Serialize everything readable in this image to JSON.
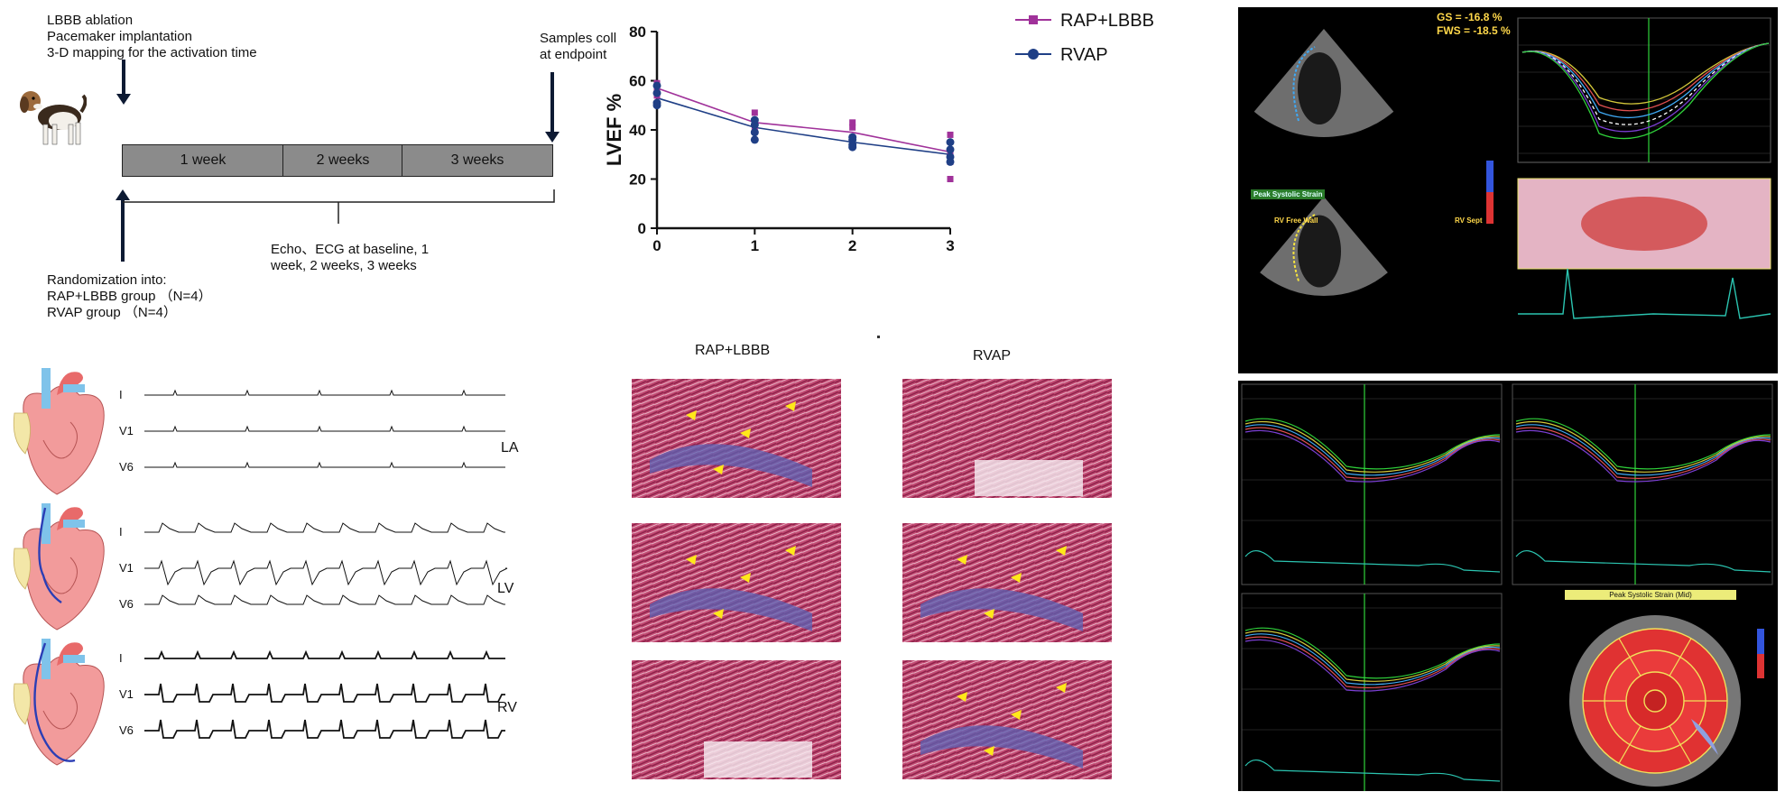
{
  "timeline": {
    "top_left_text": "LBBB ablation\nPacemaker implantation\n3-D mapping for the activation time",
    "top_right_text": "Samples coll\nat endpoint",
    "segments": [
      "1 week",
      "2 weeks",
      "3 weeks"
    ],
    "echo_text": "Echo、ECG at baseline, 1\nweek, 2 weeks, 3 weeks",
    "randomization_text": "Randomization into:\nRAP+LBBB group （N=4）\nRVAP group （N=4）"
  },
  "chart_data": {
    "type": "line",
    "title": "",
    "xlabel": "",
    "ylabel": "LVEF %",
    "x": [
      0,
      1,
      2,
      3
    ],
    "xlim": [
      0,
      3
    ],
    "ylim": [
      0,
      80
    ],
    "yticks": [
      0,
      20,
      40,
      60,
      80
    ],
    "legend_position": "top-right",
    "series": [
      {
        "name": "RAP+LBBB",
        "color": "#a0329a",
        "marker": "square",
        "values": [
          57,
          43,
          39,
          31
        ],
        "points": [
          [
            0,
            59
          ],
          [
            0,
            56
          ],
          [
            0,
            54
          ],
          [
            1,
            47
          ],
          [
            1,
            43
          ],
          [
            1,
            40
          ],
          [
            2,
            43
          ],
          [
            2,
            41
          ],
          [
            2,
            37
          ],
          [
            3,
            38
          ],
          [
            3,
            30
          ],
          [
            3,
            27
          ],
          [
            3,
            20
          ]
        ]
      },
      {
        "name": "RVAP",
        "color": "#1f3f86",
        "marker": "circle",
        "values": [
          53,
          41,
          35,
          30
        ],
        "points": [
          [
            0,
            58
          ],
          [
            0,
            55
          ],
          [
            0,
            51
          ],
          [
            0,
            50
          ],
          [
            1,
            44
          ],
          [
            1,
            42
          ],
          [
            1,
            39
          ],
          [
            1,
            36
          ],
          [
            2,
            37
          ],
          [
            2,
            36
          ],
          [
            2,
            34
          ],
          [
            2,
            33
          ],
          [
            3,
            35
          ],
          [
            3,
            32
          ],
          [
            3,
            29
          ],
          [
            3,
            27
          ]
        ]
      }
    ]
  },
  "histology": {
    "col_left": "RAP+LBBB",
    "col_right": "RVAP"
  },
  "ecg": {
    "leads": [
      "I",
      "V1",
      "V6"
    ],
    "chambers": [
      "LA",
      "LV",
      "RV"
    ]
  },
  "echo": {
    "gs_text": "GS = -16.8 %",
    "fws_text": "FWS = -18.5 %",
    "peak_label": "Peak Systolic Strain",
    "rv_free_wall": "RV Free Wall",
    "rv_sept": "RV Sept",
    "bullseye_title": "Peak Systolic Strain (Mid)"
  },
  "colors": {
    "rap": "#a0329a",
    "rvap": "#1f3f86",
    "timeline_fill": "#8b8b8b",
    "echo_bg": "#000000",
    "echo_grid": "#2fd13a",
    "stain_red": "#b2345f",
    "stain_blue": "#5a63b5"
  }
}
